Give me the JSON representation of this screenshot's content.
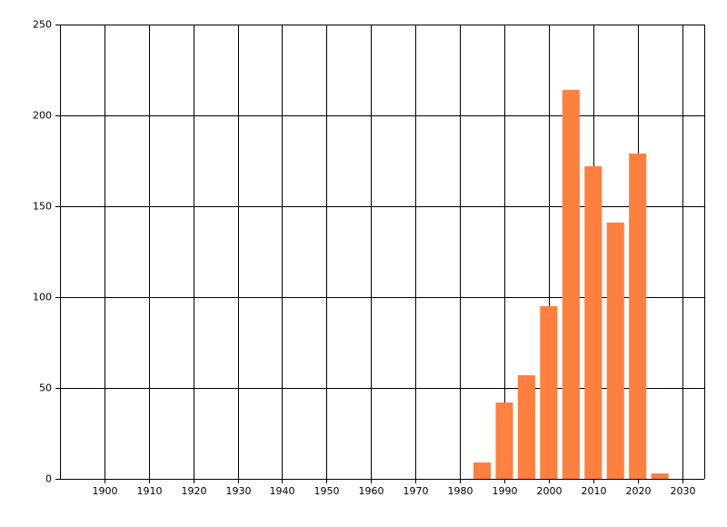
{
  "chart_data": {
    "type": "bar",
    "x": [
      1985,
      1990,
      1995,
      2000,
      2005,
      2010,
      2015,
      2020,
      2025
    ],
    "values": [
      9,
      42,
      57,
      95,
      214,
      172,
      141,
      179,
      3
    ],
    "color": "#ff7f3f",
    "xlim": [
      1890,
      2035
    ],
    "xticks": [
      1900,
      1910,
      1920,
      1930,
      1940,
      1950,
      1960,
      1970,
      1980,
      1990,
      2000,
      2010,
      2020,
      2030
    ],
    "ylim": [
      0,
      250
    ],
    "yticks": [
      0,
      50,
      100,
      150,
      200,
      250
    ],
    "grid": true
  }
}
